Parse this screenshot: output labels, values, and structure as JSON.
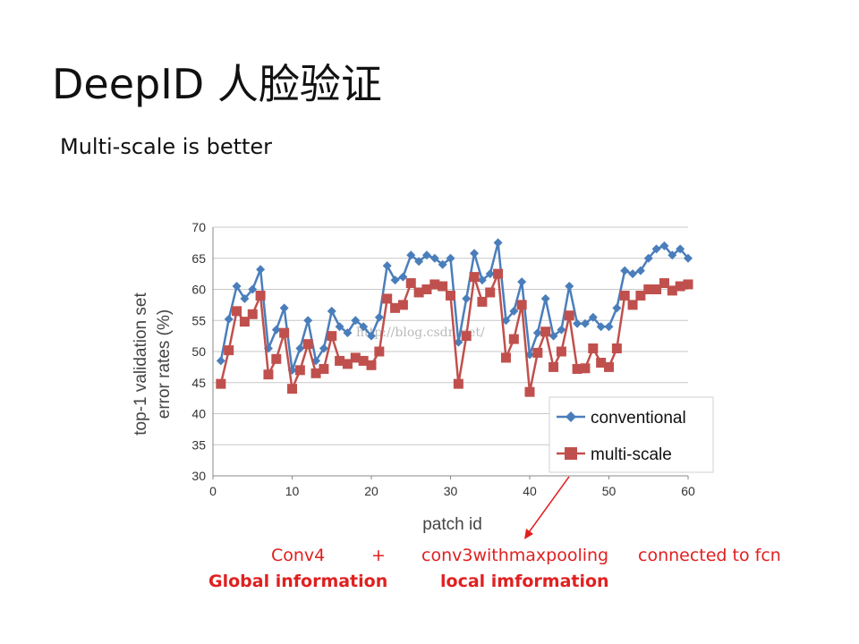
{
  "slide": {
    "title": "DeepID 人脸验证",
    "subtitle": "Multi-scale is better",
    "annotations": {
      "conv4": "Conv4",
      "plus": "+",
      "conv3": "conv3withmaxpooling",
      "connected": "connected to fcn",
      "global": "Global information",
      "local": "local imformation"
    },
    "watermark": "http://blog.csdn.net/"
  },
  "colors": {
    "conventional": "#4a7ebb",
    "multi_scale": "#c0504d",
    "annotation": "#e02020"
  },
  "chart_data": {
    "type": "line",
    "xlabel": "patch id",
    "ylabel_lines": [
      "top-1 validation set",
      "error rates (%)"
    ],
    "xlim": [
      0,
      60
    ],
    "ylim": [
      30,
      70
    ],
    "xticks": [
      0,
      10,
      20,
      30,
      40,
      50,
      60
    ],
    "yticks": [
      30,
      35,
      40,
      45,
      50,
      55,
      60,
      65,
      70
    ],
    "grid": true,
    "legend_position": "bottom-right",
    "x": [
      1,
      2,
      3,
      4,
      5,
      6,
      7,
      8,
      9,
      10,
      11,
      12,
      13,
      14,
      15,
      16,
      17,
      18,
      19,
      20,
      21,
      22,
      23,
      24,
      25,
      26,
      27,
      28,
      29,
      30,
      31,
      32,
      33,
      34,
      35,
      36,
      37,
      38,
      39,
      40,
      41,
      42,
      43,
      44,
      45,
      46,
      47,
      48,
      49,
      50,
      51,
      52,
      53,
      54,
      55,
      56,
      57,
      58,
      59,
      60
    ],
    "series": [
      {
        "name": "conventional",
        "marker": "diamond",
        "values": [
          48.5,
          55.2,
          60.5,
          58.5,
          60.0,
          63.2,
          50.5,
          53.5,
          57.0,
          47.0,
          50.5,
          55.0,
          48.5,
          50.5,
          56.5,
          54.0,
          53.0,
          55.0,
          54.0,
          52.5,
          55.5,
          63.8,
          61.5,
          62.0,
          65.5,
          64.5,
          65.5,
          65.0,
          64.0,
          65.0,
          51.5,
          58.5,
          65.8,
          61.5,
          62.5,
          67.5,
          55.0,
          56.5,
          61.2,
          49.5,
          53.0,
          58.5,
          52.5,
          53.5,
          60.5,
          54.5,
          54.5,
          55.5,
          54.0,
          54.0,
          57.0,
          63.0,
          62.5,
          63.0,
          65.0,
          66.5,
          67.0,
          65.5,
          66.5,
          65.0
        ]
      },
      {
        "name": "multi-scale",
        "marker": "square",
        "values": [
          44.8,
          50.2,
          56.5,
          54.8,
          56.0,
          59.0,
          46.3,
          48.8,
          53.0,
          44.0,
          47.0,
          51.2,
          46.5,
          47.2,
          52.5,
          48.5,
          48.0,
          49.0,
          48.5,
          47.8,
          50.0,
          58.5,
          57.0,
          57.5,
          61.0,
          59.5,
          60.0,
          60.8,
          60.5,
          59.0,
          44.8,
          52.5,
          62.0,
          58.0,
          59.5,
          62.5,
          49.0,
          52.0,
          57.5,
          43.5,
          49.8,
          53.2,
          47.5,
          50.0,
          55.8,
          47.2,
          47.3,
          50.5,
          48.2,
          47.5,
          50.5,
          59.0,
          57.5,
          59.0,
          60.0,
          60.0,
          61.0,
          59.8,
          60.5,
          60.8
        ]
      }
    ]
  }
}
